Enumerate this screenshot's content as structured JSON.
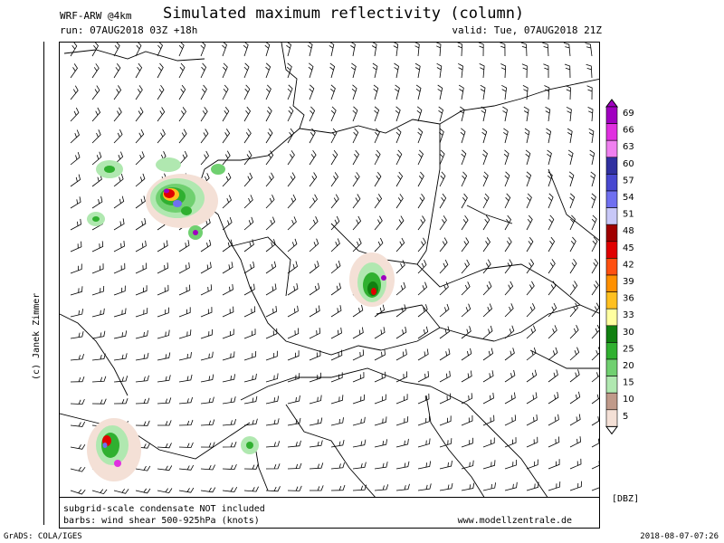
{
  "header": {
    "model": "WRF-ARW @4km",
    "title": "Simulated maximum reflectivity (column)",
    "run": "run: 07AUG2018 03Z +18h",
    "valid": "valid: Tue, 07AUG2018 21Z"
  },
  "author": "(c) Janek Zimmer",
  "footer": {
    "note1": "subgrid-scale condensate NOT included",
    "note2": "barbs: wind shear 500-925hPa (knots)",
    "site": "www.modellzentrale.de",
    "grads": "GrADS: COLA/IGES",
    "timestamp": "2018-08-07-07:26"
  },
  "legend": {
    "unit": "[DBZ]",
    "levels": [
      {
        "value": "69",
        "color": "#a000c0"
      },
      {
        "value": "66",
        "color": "#e030e0"
      },
      {
        "value": "63",
        "color": "#f080f0"
      },
      {
        "value": "60",
        "color": "#3030a0"
      },
      {
        "value": "57",
        "color": "#4848d0"
      },
      {
        "value": "54",
        "color": "#7070f0"
      },
      {
        "value": "51",
        "color": "#c8c8f8"
      },
      {
        "value": "48",
        "color": "#a00000"
      },
      {
        "value": "45",
        "color": "#e00000"
      },
      {
        "value": "42",
        "color": "#ff5010"
      },
      {
        "value": "39",
        "color": "#ff9000"
      },
      {
        "value": "36",
        "color": "#ffc020"
      },
      {
        "value": "33",
        "color": "#ffffa0"
      },
      {
        "value": "30",
        "color": "#108010"
      },
      {
        "value": "25",
        "color": "#30b030"
      },
      {
        "value": "20",
        "color": "#70d070"
      },
      {
        "value": "15",
        "color": "#b0e8b0"
      },
      {
        "value": "10",
        "color": "#c09a8a"
      },
      {
        "value": "5",
        "color": "#f4e0d6"
      }
    ]
  }
}
